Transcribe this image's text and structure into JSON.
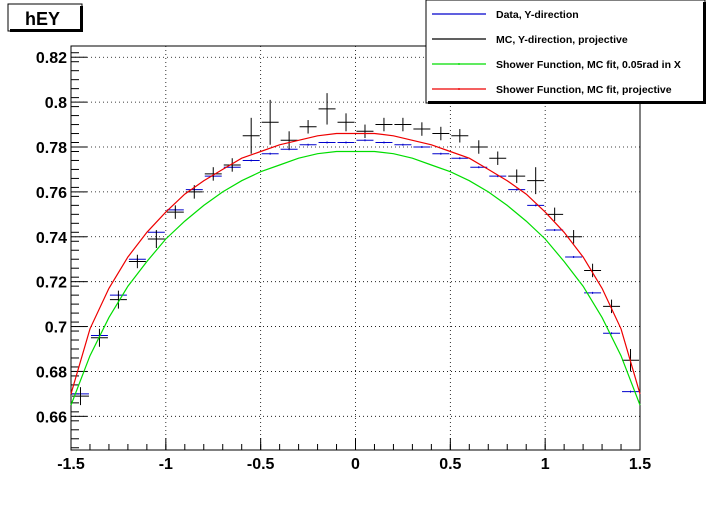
{
  "chart_data": {
    "type": "scatter",
    "title": "hEY",
    "xlabel": "",
    "ylabel": "",
    "xlim": [
      -1.5,
      1.5
    ],
    "ylim": [
      0.645,
      0.825
    ],
    "grid": true,
    "legend_position": "top-right",
    "x_ticks": [
      -1.5,
      -1,
      -0.5,
      0,
      0.5,
      1,
      1.5
    ],
    "x_tick_labels": [
      "-1.5",
      "-1",
      "-0.5",
      "0",
      "0.5",
      "1",
      "1.5"
    ],
    "y_ticks": [
      0.66,
      0.68,
      0.7,
      0.72,
      0.74,
      0.76,
      0.78,
      0.8,
      0.82
    ],
    "y_tick_labels": [
      "0.66",
      "0.68",
      "0.7",
      "0.72",
      "0.74",
      "0.76",
      "0.78",
      "0.8",
      "0.82"
    ],
    "series": [
      {
        "name": "Data, Y-direction",
        "color": "#0000cc",
        "kind": "points",
        "x": [
          -1.45,
          -1.35,
          -1.25,
          -1.15,
          -1.05,
          -0.95,
          -0.85,
          -0.75,
          -0.65,
          -0.55,
          -0.45,
          -0.35,
          -0.25,
          -0.15,
          -0.05,
          0.05,
          0.15,
          0.25,
          0.35,
          0.45,
          0.55,
          0.65,
          0.75,
          0.85,
          0.95,
          1.05,
          1.15,
          1.25,
          1.35,
          1.45
        ],
        "y": [
          0.67,
          0.696,
          0.714,
          0.73,
          0.742,
          0.752,
          0.761,
          0.767,
          0.771,
          0.774,
          0.777,
          0.779,
          0.781,
          0.782,
          0.782,
          0.783,
          0.782,
          0.781,
          0.78,
          0.777,
          0.775,
          0.771,
          0.767,
          0.761,
          0.754,
          0.743,
          0.731,
          0.715,
          0.697,
          0.671
        ]
      },
      {
        "name": "MC, Y-direction, projective",
        "color": "#000000",
        "kind": "points",
        "x": [
          -1.45,
          -1.35,
          -1.25,
          -1.15,
          -1.05,
          -0.95,
          -0.85,
          -0.75,
          -0.65,
          -0.55,
          -0.45,
          -0.35,
          -0.25,
          -0.15,
          -0.05,
          0.05,
          0.15,
          0.25,
          0.35,
          0.45,
          0.55,
          0.65,
          0.75,
          0.85,
          0.95,
          1.05,
          1.15,
          1.25,
          1.35,
          1.45
        ],
        "y": [
          0.669,
          0.695,
          0.712,
          0.729,
          0.739,
          0.751,
          0.76,
          0.768,
          0.772,
          0.785,
          0.791,
          0.783,
          0.789,
          0.797,
          0.791,
          0.787,
          0.79,
          0.79,
          0.788,
          0.786,
          0.785,
          0.78,
          0.775,
          0.767,
          0.765,
          0.75,
          0.74,
          0.725,
          0.709,
          0.685
        ],
        "yerr": [
          0.004,
          0.004,
          0.004,
          0.003,
          0.004,
          0.003,
          0.003,
          0.003,
          0.003,
          0.008,
          0.01,
          0.004,
          0.003,
          0.007,
          0.004,
          0.003,
          0.003,
          0.003,
          0.003,
          0.003,
          0.003,
          0.003,
          0.003,
          0.003,
          0.006,
          0.003,
          0.003,
          0.003,
          0.003,
          0.005
        ]
      },
      {
        "name": "Shower Function, MC fit, 0.05rad in X",
        "color": "#00dd00",
        "kind": "curve",
        "x": [
          -1.5,
          -1.4,
          -1.3,
          -1.2,
          -1.1,
          -1.0,
          -0.9,
          -0.8,
          -0.7,
          -0.6,
          -0.5,
          -0.4,
          -0.3,
          -0.2,
          -0.1,
          0.0,
          0.1,
          0.2,
          0.3,
          0.4,
          0.5,
          0.6,
          0.7,
          0.8,
          0.9,
          1.0,
          1.1,
          1.2,
          1.3,
          1.4,
          1.5
        ],
        "y": [
          0.665,
          0.687,
          0.704,
          0.718,
          0.729,
          0.739,
          0.747,
          0.754,
          0.76,
          0.765,
          0.769,
          0.772,
          0.775,
          0.777,
          0.778,
          0.778,
          0.778,
          0.777,
          0.775,
          0.772,
          0.769,
          0.765,
          0.76,
          0.754,
          0.747,
          0.739,
          0.729,
          0.718,
          0.704,
          0.687,
          0.665
        ]
      },
      {
        "name": "Shower Function, MC fit, projective",
        "color": "#ee0000",
        "kind": "curve",
        "x": [
          -1.5,
          -1.4,
          -1.3,
          -1.2,
          -1.1,
          -1.0,
          -0.9,
          -0.8,
          -0.7,
          -0.6,
          -0.5,
          -0.4,
          -0.3,
          -0.2,
          -0.1,
          0.0,
          0.1,
          0.2,
          0.3,
          0.4,
          0.5,
          0.6,
          0.7,
          0.8,
          0.9,
          1.0,
          1.1,
          1.2,
          1.3,
          1.4,
          1.5
        ],
        "y": [
          0.67,
          0.699,
          0.717,
          0.731,
          0.742,
          0.751,
          0.759,
          0.765,
          0.77,
          0.775,
          0.778,
          0.781,
          0.783,
          0.785,
          0.786,
          0.786,
          0.786,
          0.785,
          0.783,
          0.781,
          0.778,
          0.775,
          0.77,
          0.765,
          0.759,
          0.751,
          0.742,
          0.731,
          0.717,
          0.699,
          0.67
        ]
      }
    ]
  }
}
